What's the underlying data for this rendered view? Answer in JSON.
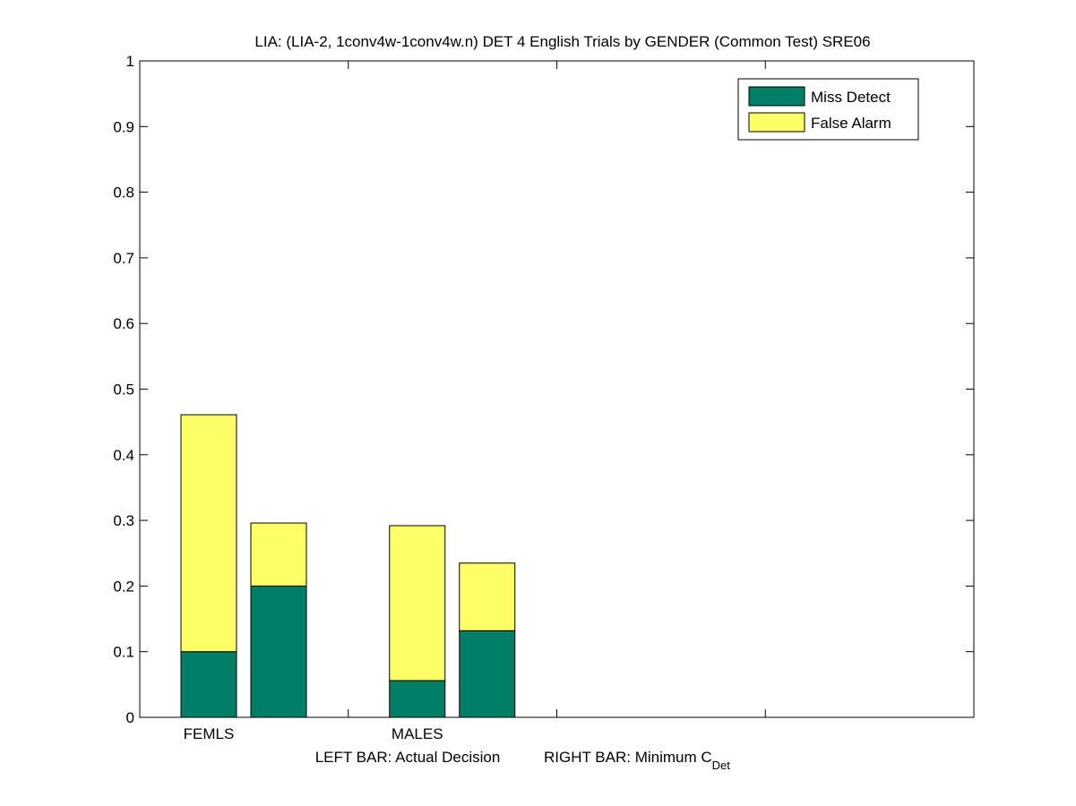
{
  "chart_data": {
    "type": "bar",
    "stacked": true,
    "title": "LIA: (LIA-2, 1conv4w-1conv4w.n) DET 4 English Trials by GENDER (Common Test) SRE06",
    "categories": [
      "FEMLS",
      "MALES"
    ],
    "bar_roles": [
      "Actual Decision",
      "Minimum C_Det"
    ],
    "series": [
      {
        "name": "Miss Detect",
        "color": "#007f66",
        "values": [
          [
            0.1,
            0.2
          ],
          [
            0.056,
            0.132
          ]
        ]
      },
      {
        "name": "False Alarm",
        "color": "#ffff66",
        "values": [
          [
            0.361,
            0.096
          ],
          [
            0.236,
            0.103
          ]
        ]
      }
    ],
    "xlabel_left": "LEFT BAR: Actual Decision",
    "xlabel_right_main": "RIGHT BAR: Minimum C",
    "xlabel_right_sub": "Det",
    "ylim": [
      0,
      1
    ],
    "yticks": [
      "0",
      "0.1",
      "0.2",
      "0.3",
      "0.4",
      "0.5",
      "0.6",
      "0.7",
      "0.8",
      "0.9",
      "1"
    ],
    "legend_position": "top-right",
    "grid": false
  }
}
